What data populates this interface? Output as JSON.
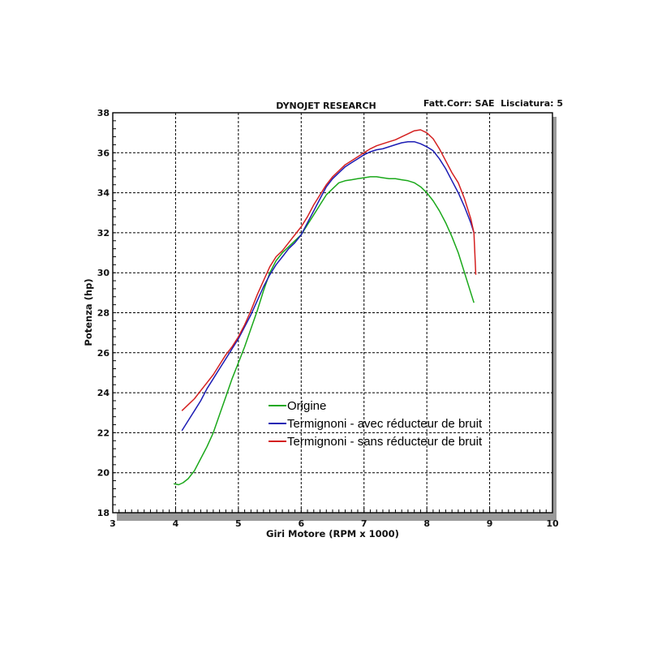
{
  "chart_data": {
    "type": "line",
    "title": "DYNOJET RESEARCH",
    "header_right": "Fatt.Corr: SAE  Lisciatura: 5",
    "xlabel": "Giri Motore (RPM x 1000)",
    "ylabel": "Potenza (hp)",
    "xlim": [
      3,
      10
    ],
    "ylim": [
      18,
      38
    ],
    "x_ticks": [
      "3",
      "4",
      "5",
      "6",
      "7",
      "8",
      "9",
      "10"
    ],
    "y_ticks": [
      "18",
      "20",
      "22",
      "24",
      "26",
      "28",
      "30",
      "32",
      "34",
      "36",
      "38"
    ],
    "grid": true,
    "legend_position": "center-left",
    "series": [
      {
        "name": "Origine",
        "color": "#1aa81a",
        "x": [
          3.97,
          4.05,
          4.12,
          4.2,
          4.3,
          4.4,
          4.5,
          4.6,
          4.7,
          4.8,
          4.9,
          5.0,
          5.1,
          5.2,
          5.3,
          5.4,
          5.5,
          5.6,
          5.7,
          5.8,
          5.9,
          6.0,
          6.1,
          6.2,
          6.3,
          6.4,
          6.5,
          6.6,
          6.7,
          6.8,
          6.9,
          7.0,
          7.1,
          7.2,
          7.3,
          7.4,
          7.5,
          7.6,
          7.7,
          7.8,
          7.9,
          8.0,
          8.1,
          8.2,
          8.3,
          8.4,
          8.5,
          8.6,
          8.7,
          8.75
        ],
        "y": [
          19.45,
          19.4,
          19.5,
          19.7,
          20.1,
          20.7,
          21.3,
          22.0,
          22.9,
          23.8,
          24.7,
          25.5,
          26.3,
          27.2,
          28.1,
          29.1,
          30.0,
          30.6,
          31.0,
          31.3,
          31.6,
          31.9,
          32.4,
          32.9,
          33.4,
          33.9,
          34.2,
          34.5,
          34.6,
          34.65,
          34.7,
          34.75,
          34.8,
          34.8,
          34.75,
          34.7,
          34.7,
          34.65,
          34.6,
          34.5,
          34.3,
          34.0,
          33.6,
          33.1,
          32.5,
          31.8,
          31.0,
          30.0,
          29.0,
          28.5
        ]
      },
      {
        "name": "Termignoni - avec réducteur de bruit",
        "color": "#1c1cb4",
        "x": [
          4.1,
          4.2,
          4.3,
          4.4,
          4.5,
          4.6,
          4.7,
          4.8,
          4.9,
          5.0,
          5.1,
          5.2,
          5.3,
          5.4,
          5.5,
          5.6,
          5.7,
          5.8,
          5.9,
          6.0,
          6.1,
          6.2,
          6.3,
          6.4,
          6.5,
          6.6,
          6.7,
          6.8,
          6.9,
          7.0,
          7.1,
          7.2,
          7.3,
          7.4,
          7.5,
          7.6,
          7.7,
          7.8,
          7.9,
          8.0,
          8.1,
          8.2,
          8.3,
          8.4,
          8.5,
          8.6,
          8.7,
          8.75
        ],
        "y": [
          22.1,
          22.6,
          23.1,
          23.6,
          24.2,
          24.7,
          25.2,
          25.7,
          26.2,
          26.7,
          27.3,
          27.9,
          28.6,
          29.3,
          29.9,
          30.4,
          30.8,
          31.2,
          31.5,
          31.9,
          32.5,
          33.1,
          33.7,
          34.3,
          34.7,
          35.0,
          35.3,
          35.5,
          35.7,
          35.9,
          36.05,
          36.15,
          36.2,
          36.3,
          36.4,
          36.5,
          36.55,
          36.55,
          36.45,
          36.3,
          36.1,
          35.7,
          35.2,
          34.6,
          34.0,
          33.3,
          32.5,
          32.0
        ]
      },
      {
        "name": "Termignoni - sans réducteur de bruit",
        "color": "#d42020",
        "x": [
          4.1,
          4.2,
          4.3,
          4.4,
          4.5,
          4.6,
          4.7,
          4.8,
          4.9,
          5.0,
          5.1,
          5.2,
          5.3,
          5.4,
          5.5,
          5.6,
          5.7,
          5.8,
          5.9,
          6.0,
          6.1,
          6.2,
          6.3,
          6.4,
          6.5,
          6.6,
          6.7,
          6.8,
          6.9,
          7.0,
          7.1,
          7.2,
          7.3,
          7.4,
          7.5,
          7.6,
          7.7,
          7.8,
          7.9,
          8.0,
          8.1,
          8.2,
          8.3,
          8.4,
          8.5,
          8.6,
          8.7,
          8.75,
          8.78
        ],
        "y": [
          23.1,
          23.4,
          23.7,
          24.1,
          24.5,
          24.9,
          25.4,
          25.9,
          26.3,
          26.8,
          27.4,
          28.1,
          28.9,
          29.6,
          30.3,
          30.8,
          31.1,
          31.5,
          31.9,
          32.3,
          32.8,
          33.4,
          33.9,
          34.4,
          34.8,
          35.1,
          35.4,
          35.6,
          35.8,
          36.0,
          36.2,
          36.35,
          36.45,
          36.55,
          36.65,
          36.8,
          36.95,
          37.1,
          37.15,
          37.0,
          36.7,
          36.2,
          35.6,
          35.0,
          34.5,
          33.7,
          32.7,
          32.0,
          29.9
        ]
      }
    ]
  }
}
